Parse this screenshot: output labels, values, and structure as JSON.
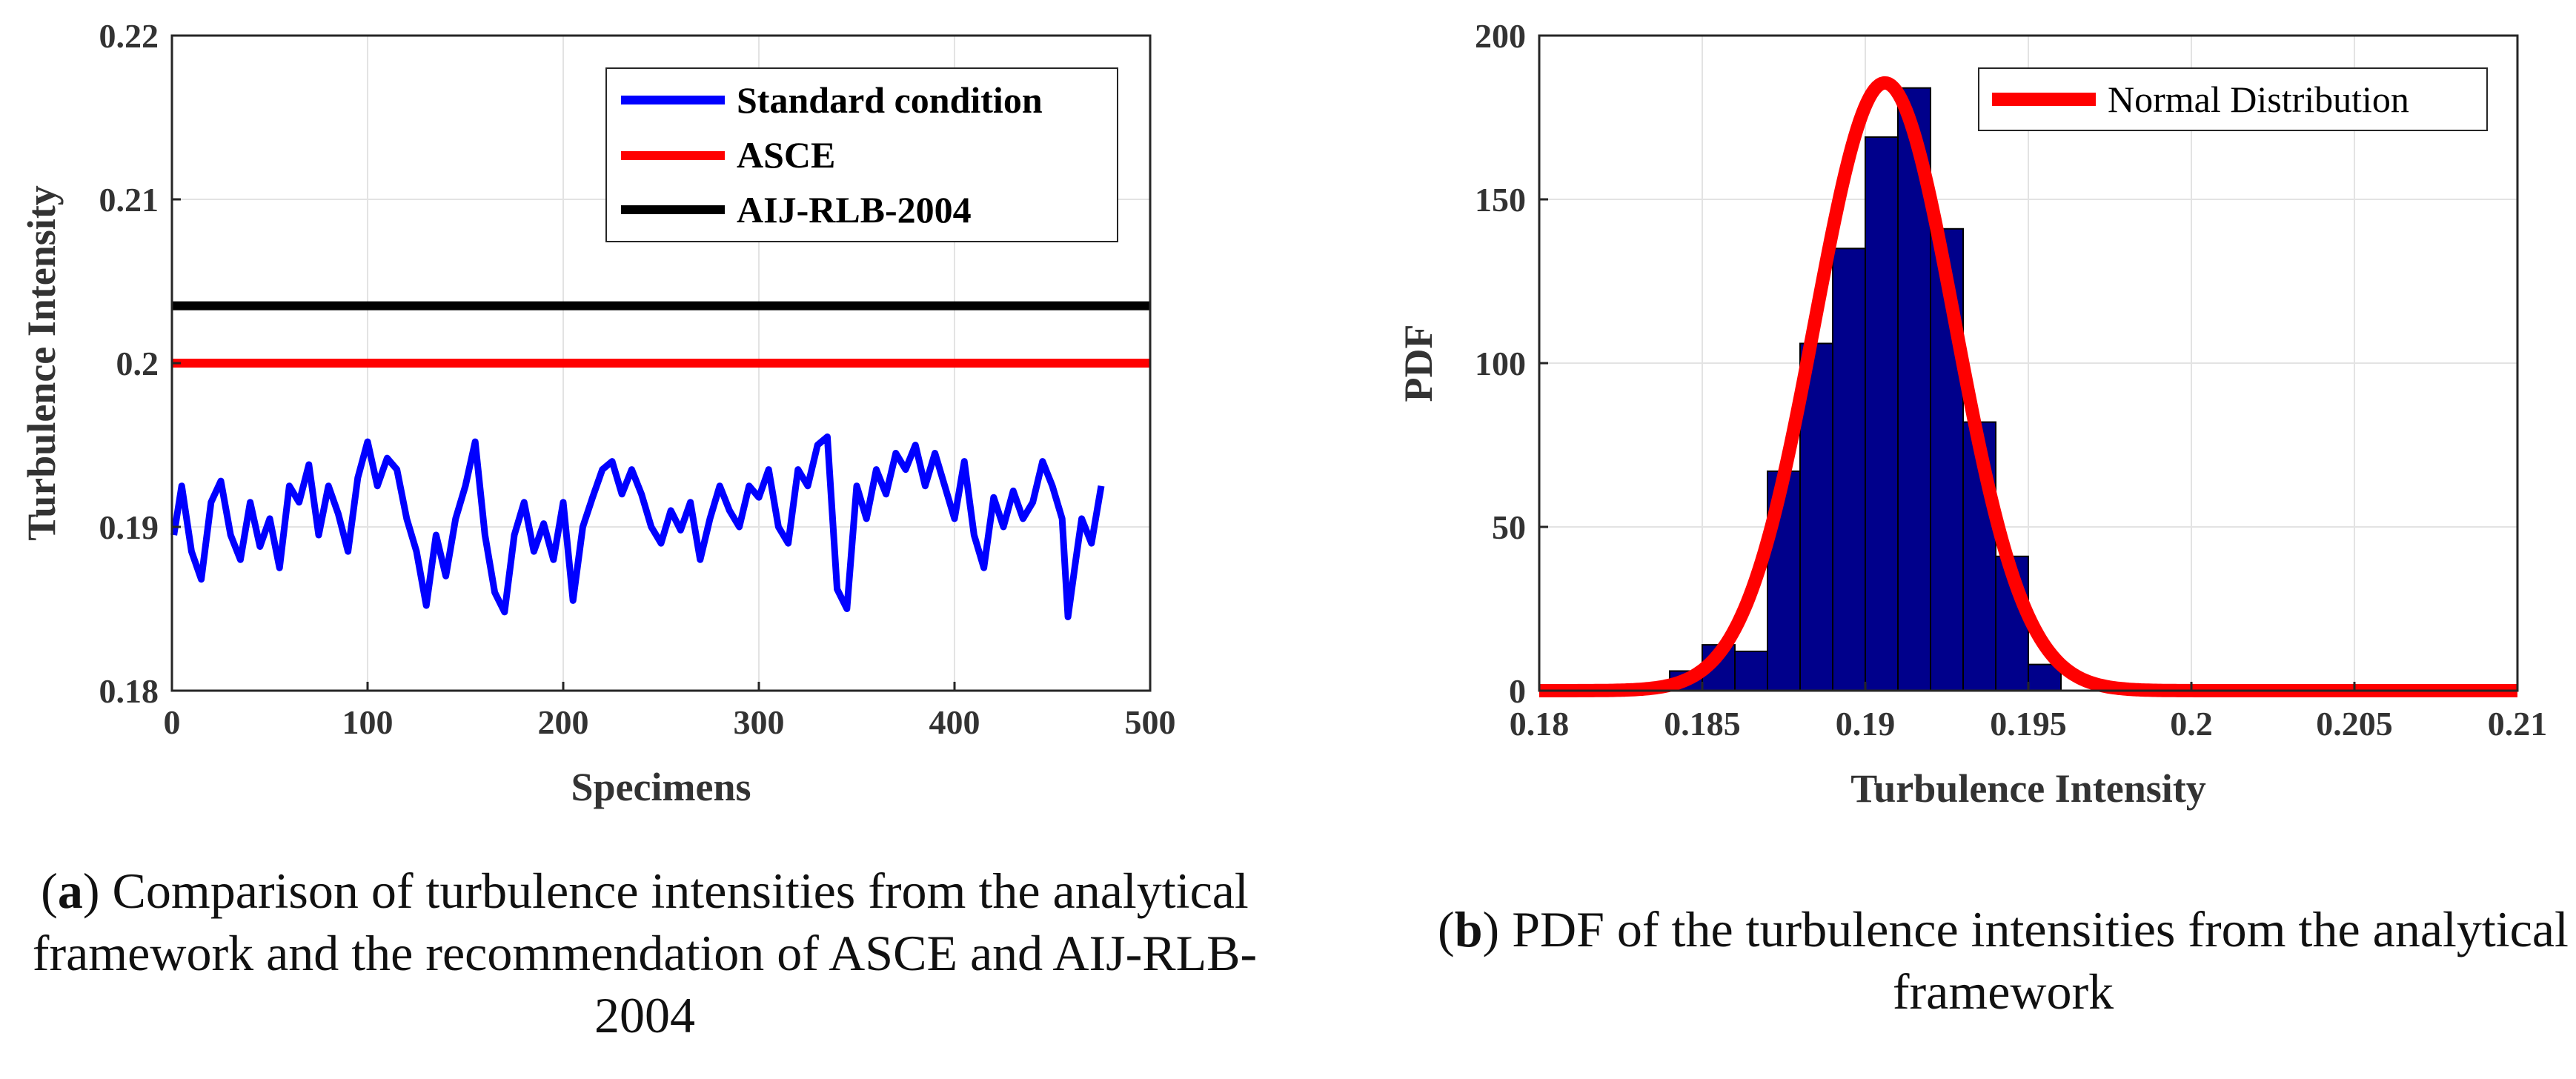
{
  "chart_data": [
    {
      "id": "a",
      "type": "line",
      "xlabel": "Specimens",
      "ylabel": "Turbulence Intensity",
      "xlim": [
        0,
        500
      ],
      "ylim": [
        0.18,
        0.22
      ],
      "xticks": [
        0,
        100,
        200,
        300,
        400,
        500
      ],
      "yticks": [
        0.18,
        0.19,
        0.2,
        0.21,
        0.22
      ],
      "ytick_labels": [
        "0.18",
        "0.19",
        "0.2",
        "0.21",
        "0.22"
      ],
      "grid": true,
      "legend_position": "top-right",
      "series": [
        {
          "name": "Standard condition",
          "color": "#0000ff",
          "points": [
            [
              1,
              0.1895
            ],
            [
              5,
              0.1925
            ],
            [
              10,
              0.1885
            ],
            [
              15,
              0.1868
            ],
            [
              20,
              0.1915
            ],
            [
              25,
              0.1928
            ],
            [
              30,
              0.1895
            ],
            [
              35,
              0.188
            ],
            [
              40,
              0.1915
            ],
            [
              45,
              0.1888
            ],
            [
              50,
              0.1905
            ],
            [
              55,
              0.1875
            ],
            [
              60,
              0.1925
            ],
            [
              65,
              0.1915
            ],
            [
              70,
              0.1938
            ],
            [
              75,
              0.1895
            ],
            [
              80,
              0.1925
            ],
            [
              85,
              0.1908
            ],
            [
              90,
              0.1885
            ],
            [
              95,
              0.193
            ],
            [
              100,
              0.1952
            ],
            [
              105,
              0.1925
            ],
            [
              110,
              0.1942
            ],
            [
              115,
              0.1935
            ],
            [
              120,
              0.1905
            ],
            [
              125,
              0.1885
            ],
            [
              130,
              0.1852
            ],
            [
              135,
              0.1895
            ],
            [
              140,
              0.187
            ],
            [
              145,
              0.1905
            ],
            [
              150,
              0.1925
            ],
            [
              155,
              0.1952
            ],
            [
              160,
              0.1895
            ],
            [
              165,
              0.186
            ],
            [
              170,
              0.1848
            ],
            [
              175,
              0.1895
            ],
            [
              180,
              0.1915
            ],
            [
              185,
              0.1885
            ],
            [
              190,
              0.1902
            ],
            [
              195,
              0.188
            ],
            [
              200,
              0.1915
            ],
            [
              205,
              0.1855
            ],
            [
              210,
              0.19
            ],
            [
              215,
              0.1918
            ],
            [
              220,
              0.1935
            ],
            [
              225,
              0.194
            ],
            [
              230,
              0.192
            ],
            [
              235,
              0.1935
            ],
            [
              240,
              0.192
            ],
            [
              245,
              0.19
            ],
            [
              250,
              0.189
            ],
            [
              255,
              0.191
            ],
            [
              260,
              0.1898
            ],
            [
              265,
              0.1915
            ],
            [
              270,
              0.188
            ],
            [
              275,
              0.1905
            ],
            [
              280,
              0.1925
            ],
            [
              285,
              0.191
            ],
            [
              290,
              0.19
            ],
            [
              295,
              0.1925
            ],
            [
              300,
              0.1918
            ],
            [
              305,
              0.1935
            ],
            [
              310,
              0.19
            ],
            [
              315,
              0.189
            ],
            [
              320,
              0.1935
            ],
            [
              325,
              0.1925
            ],
            [
              330,
              0.195
            ],
            [
              335,
              0.1955
            ],
            [
              340,
              0.1862
            ],
            [
              345,
              0.185
            ],
            [
              350,
              0.1925
            ],
            [
              355,
              0.1905
            ],
            [
              360,
              0.1935
            ],
            [
              365,
              0.192
            ],
            [
              370,
              0.1945
            ],
            [
              375,
              0.1935
            ],
            [
              380,
              0.195
            ],
            [
              385,
              0.1925
            ],
            [
              390,
              0.1945
            ],
            [
              395,
              0.1925
            ],
            [
              400,
              0.1905
            ],
            [
              405,
              0.194
            ],
            [
              410,
              0.1895
            ],
            [
              415,
              0.1875
            ],
            [
              420,
              0.1918
            ],
            [
              425,
              0.19
            ],
            [
              430,
              0.1922
            ],
            [
              435,
              0.1905
            ],
            [
              440,
              0.1915
            ],
            [
              445,
              0.194
            ],
            [
              450,
              0.1925
            ],
            [
              455,
              0.1905
            ],
            [
              458,
              0.1845
            ],
            [
              462,
              0.188
            ],
            [
              465,
              0.1905
            ],
            [
              470,
              0.189
            ],
            [
              475,
              0.1925
            ]
          ]
        },
        {
          "name": "ASCE",
          "color": "#ff0000",
          "value": 0.2
        },
        {
          "name": "AIJ-RLB-2004",
          "color": "#000000",
          "value": 0.2035
        }
      ]
    },
    {
      "id": "b",
      "type": "histogram",
      "xlabel": "Turbulence Intensity",
      "ylabel": "PDF",
      "xlim": [
        0.18,
        0.21
      ],
      "ylim": [
        0,
        200
      ],
      "xticks": [
        0.18,
        0.185,
        0.19,
        0.195,
        0.2,
        0.205,
        0.21
      ],
      "xtick_labels": [
        "0.18",
        "0.185",
        "0.19",
        "0.195",
        "0.2",
        "0.205",
        "0.21"
      ],
      "yticks": [
        0,
        50,
        100,
        150,
        200
      ],
      "grid": true,
      "legend_position": "top-right",
      "bar_color": "#00008b",
      "bin_width": 0.001,
      "bins": [
        {
          "center": 0.1845,
          "value": 6
        },
        {
          "center": 0.1855,
          "value": 14
        },
        {
          "center": 0.1865,
          "value": 12
        },
        {
          "center": 0.1875,
          "value": 67
        },
        {
          "center": 0.1885,
          "value": 106
        },
        {
          "center": 0.1895,
          "value": 135
        },
        {
          "center": 0.1905,
          "value": 169
        },
        {
          "center": 0.1915,
          "value": 184
        },
        {
          "center": 0.1925,
          "value": 141
        },
        {
          "center": 0.1935,
          "value": 82
        },
        {
          "center": 0.1945,
          "value": 41
        },
        {
          "center": 0.1955,
          "value": 8
        }
      ],
      "fit": {
        "name": "Normal Distribution",
        "color": "#ff0000",
        "mean": 0.1906,
        "std": 0.00215
      }
    }
  ],
  "captions": {
    "a": {
      "letter": "a",
      "text": "Comparison of turbulence intensities from the analytical framework and the recommendation of ASCE and AIJ-RLB-2004"
    },
    "b": {
      "letter": "b",
      "text": "PDF of the turbulence intensities from the analytical framework"
    }
  }
}
